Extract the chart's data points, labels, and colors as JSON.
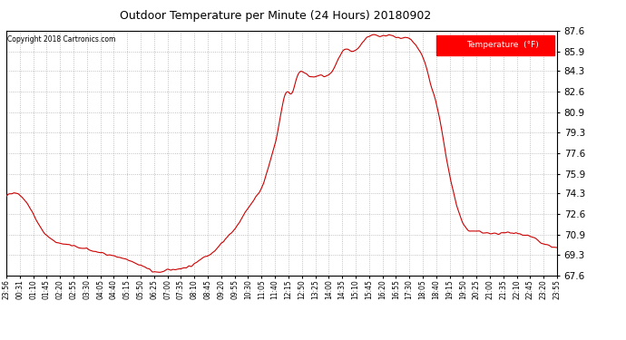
{
  "title": "Outdoor Temperature per Minute (24 Hours) 20180902",
  "copyright": "Copyright 2018 Cartronics.com",
  "legend_label": "Temperature  (°F)",
  "line_color": "#cc0000",
  "background_color": "#ffffff",
  "plot_bg_color": "#ffffff",
  "grid_color": "#b0b0b0",
  "ylim": [
    67.6,
    87.6
  ],
  "yticks": [
    67.6,
    69.3,
    70.9,
    72.6,
    74.3,
    75.9,
    77.6,
    79.3,
    80.9,
    82.6,
    84.3,
    85.9,
    87.6
  ],
  "xtick_labels": [
    "23:56",
    "00:31",
    "01:10",
    "01:45",
    "02:20",
    "02:55",
    "03:30",
    "04:05",
    "04:40",
    "05:15",
    "05:50",
    "06:25",
    "07:00",
    "07:35",
    "08:10",
    "08:45",
    "09:20",
    "09:55",
    "10:30",
    "11:05",
    "11:40",
    "12:15",
    "12:50",
    "13:25",
    "14:00",
    "14:35",
    "15:10",
    "15:45",
    "16:20",
    "16:55",
    "17:30",
    "18:05",
    "18:40",
    "19:15",
    "19:50",
    "20:25",
    "21:00",
    "21:35",
    "22:10",
    "22:45",
    "23:20",
    "23:55"
  ],
  "key_x": [
    0,
    30,
    60,
    90,
    120,
    160,
    200,
    240,
    280,
    320,
    360,
    385,
    420,
    460,
    490,
    510,
    540,
    570,
    600,
    640,
    670,
    690,
    710,
    730,
    745,
    760,
    790,
    820,
    850,
    880,
    910,
    940,
    960,
    975,
    990,
    1000,
    1020,
    1040,
    1060,
    1080,
    1100,
    1110,
    1120,
    1140,
    1160,
    1180,
    1200,
    1220,
    1250,
    1280,
    1310,
    1340,
    1370,
    1400,
    1430,
    1439
  ],
  "key_y": [
    74.0,
    74.3,
    73.2,
    71.5,
    70.5,
    70.1,
    69.8,
    69.5,
    69.2,
    68.8,
    68.3,
    67.9,
    68.0,
    68.2,
    68.5,
    69.0,
    69.5,
    70.5,
    71.5,
    73.5,
    75.0,
    77.0,
    79.5,
    82.5,
    82.5,
    83.8,
    83.9,
    83.9,
    84.2,
    85.9,
    85.9,
    87.0,
    87.2,
    87.2,
    87.2,
    87.2,
    87.0,
    87.0,
    86.8,
    85.9,
    84.3,
    83.0,
    82.0,
    79.0,
    75.5,
    73.0,
    71.5,
    71.2,
    71.1,
    71.0,
    71.1,
    71.0,
    70.8,
    70.2,
    69.9,
    69.8
  ]
}
